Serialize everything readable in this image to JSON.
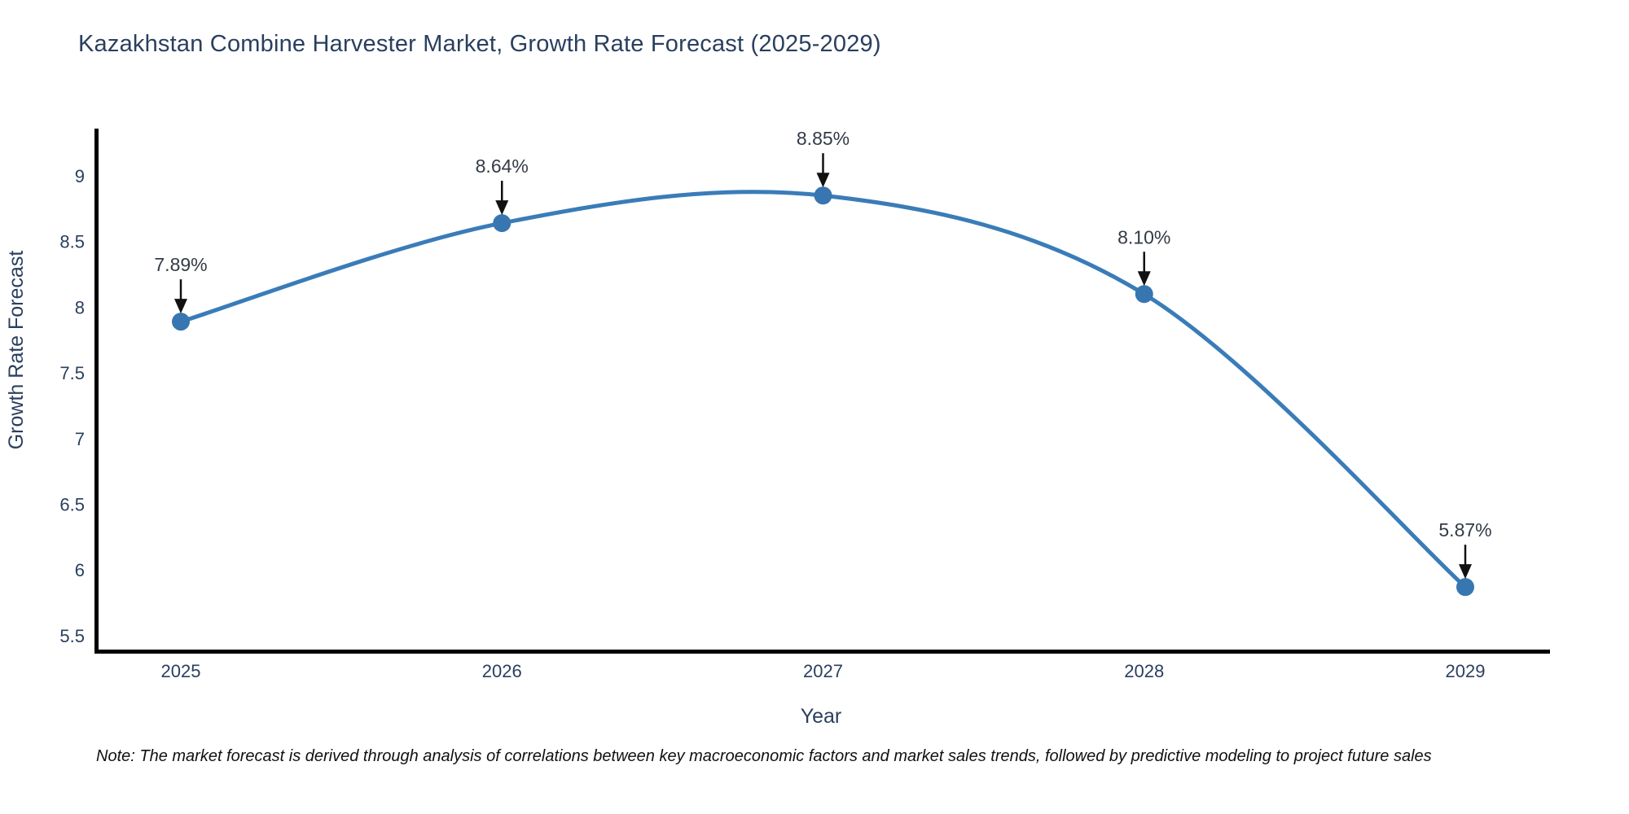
{
  "chart": {
    "title": "Kazakhstan Combine Harvester Market, Growth Rate Forecast (2025-2029)",
    "note": "Note: The market forecast is derived through analysis of correlations between key macroeconomic factors and market sales trends, followed by predictive modeling to project future sales"
  },
  "chart_data": {
    "type": "line",
    "title": "Kazakhstan Combine Harvester Market, Growth Rate Forecast (2025-2029)",
    "line_shape": "spline",
    "x": [
      2025,
      2026,
      2027,
      2028,
      2029
    ],
    "xtick_labels": [
      "2025",
      "2026",
      "2027",
      "2028",
      "2029"
    ],
    "values": [
      7.89,
      8.64,
      8.85,
      8.1,
      5.87
    ],
    "point_labels": [
      "7.89%",
      "8.64%",
      "8.85%",
      "8.10%",
      "5.87%"
    ],
    "xlabel": "Year",
    "ylabel": "Growth Rate Forecast",
    "ylim": [
      5.5,
      9
    ],
    "yticks": [
      9,
      8.5,
      8,
      7.5,
      7,
      6.5,
      6,
      5.5
    ],
    "ytick_labels": [
      "9",
      "8.5",
      "8",
      "7.5",
      "7",
      "6.5",
      "6",
      "5.5"
    ],
    "grid": false,
    "legend": false,
    "line_color": "#3a7cb8",
    "marker_color": "#3776b0",
    "axis_line_color": "#000000",
    "annotation_arrow_color": "#111111",
    "text_color": "#2a3f5f"
  }
}
